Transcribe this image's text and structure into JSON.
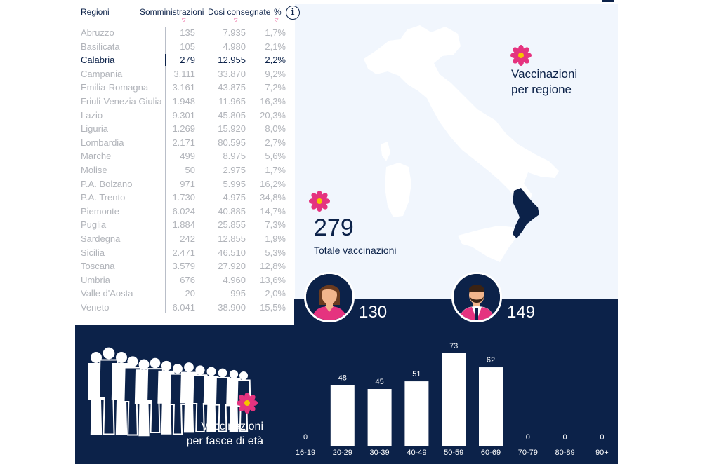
{
  "table": {
    "headers": {
      "regioni": "Regioni",
      "somministrazioni": "Somministrazioni",
      "dosi": "Dosi consegnate",
      "pct": "%"
    },
    "selected_region": "Calabria",
    "rows": [
      {
        "regione": "Abruzzo",
        "somministrazioni": "135",
        "dosi": "7.935",
        "pct": "1,7%"
      },
      {
        "regione": "Basilicata",
        "somministrazioni": "105",
        "dosi": "4.980",
        "pct": "2,1%"
      },
      {
        "regione": "Calabria",
        "somministrazioni": "279",
        "dosi": "12.955",
        "pct": "2,2%"
      },
      {
        "regione": "Campania",
        "somministrazioni": "3.111",
        "dosi": "33.870",
        "pct": "9,2%"
      },
      {
        "regione": "Emilia-Romagna",
        "somministrazioni": "3.161",
        "dosi": "43.875",
        "pct": "7,2%"
      },
      {
        "regione": "Friuli-Venezia Giulia",
        "somministrazioni": "1.948",
        "dosi": "11.965",
        "pct": "16,3%"
      },
      {
        "regione": "Lazio",
        "somministrazioni": "9.301",
        "dosi": "45.805",
        "pct": "20,3%"
      },
      {
        "regione": "Liguria",
        "somministrazioni": "1.269",
        "dosi": "15.920",
        "pct": "8,0%"
      },
      {
        "regione": "Lombardia",
        "somministrazioni": "2.171",
        "dosi": "80.595",
        "pct": "2,7%"
      },
      {
        "regione": "Marche",
        "somministrazioni": "499",
        "dosi": "8.975",
        "pct": "5,6%"
      },
      {
        "regione": "Molise",
        "somministrazioni": "50",
        "dosi": "2.975",
        "pct": "1,7%"
      },
      {
        "regione": "P.A. Bolzano",
        "somministrazioni": "971",
        "dosi": "5.995",
        "pct": "16,2%"
      },
      {
        "regione": "P.A. Trento",
        "somministrazioni": "1.730",
        "dosi": "4.975",
        "pct": "34,8%"
      },
      {
        "regione": "Piemonte",
        "somministrazioni": "6.024",
        "dosi": "40.885",
        "pct": "14,7%"
      },
      {
        "regione": "Puglia",
        "somministrazioni": "1.884",
        "dosi": "25.855",
        "pct": "7,3%"
      },
      {
        "regione": "Sardegna",
        "somministrazioni": "242",
        "dosi": "12.855",
        "pct": "1,9%"
      },
      {
        "regione": "Sicilia",
        "somministrazioni": "2.471",
        "dosi": "46.510",
        "pct": "5,3%"
      },
      {
        "regione": "Toscana",
        "somministrazioni": "3.579",
        "dosi": "27.920",
        "pct": "12,8%"
      },
      {
        "regione": "Umbria",
        "somministrazioni": "676",
        "dosi": "4.960",
        "pct": "13,6%"
      },
      {
        "regione": "Valle d'Aosta",
        "somministrazioni": "20",
        "dosi": "995",
        "pct": "2,0%"
      },
      {
        "regione": "Veneto",
        "somministrazioni": "6.041",
        "dosi": "38.900",
        "pct": "15,5%"
      }
    ]
  },
  "info_icon": "info-icon",
  "map": {
    "title_line1": "Vaccinazioni",
    "title_line2": "per regione",
    "highlighted_region": "Calabria",
    "total_value": "279",
    "total_label": "Totale vaccinazioni"
  },
  "gender": {
    "female_count": "130",
    "male_count": "149",
    "female_icon": "woman-avatar-icon",
    "male_icon": "man-avatar-icon"
  },
  "age_section": {
    "title_line1": "Vaccinazioni",
    "title_line2": "per fasce di età"
  },
  "chart_data": {
    "type": "bar",
    "categories": [
      "16-19",
      "20-29",
      "30-39",
      "40-49",
      "50-59",
      "60-69",
      "70-79",
      "80-89",
      "90+"
    ],
    "values": [
      0,
      48,
      45,
      51,
      73,
      62,
      0,
      0,
      0
    ],
    "title": "",
    "xlabel": "",
    "ylabel": "",
    "ylim": [
      0,
      73
    ],
    "grid": false,
    "legend": "none"
  },
  "colors": {
    "navy": "#0c2249",
    "light_panel": "#f1f6fd",
    "pink_accent": "#e5337f",
    "muted_text": "#b1b4ba"
  }
}
